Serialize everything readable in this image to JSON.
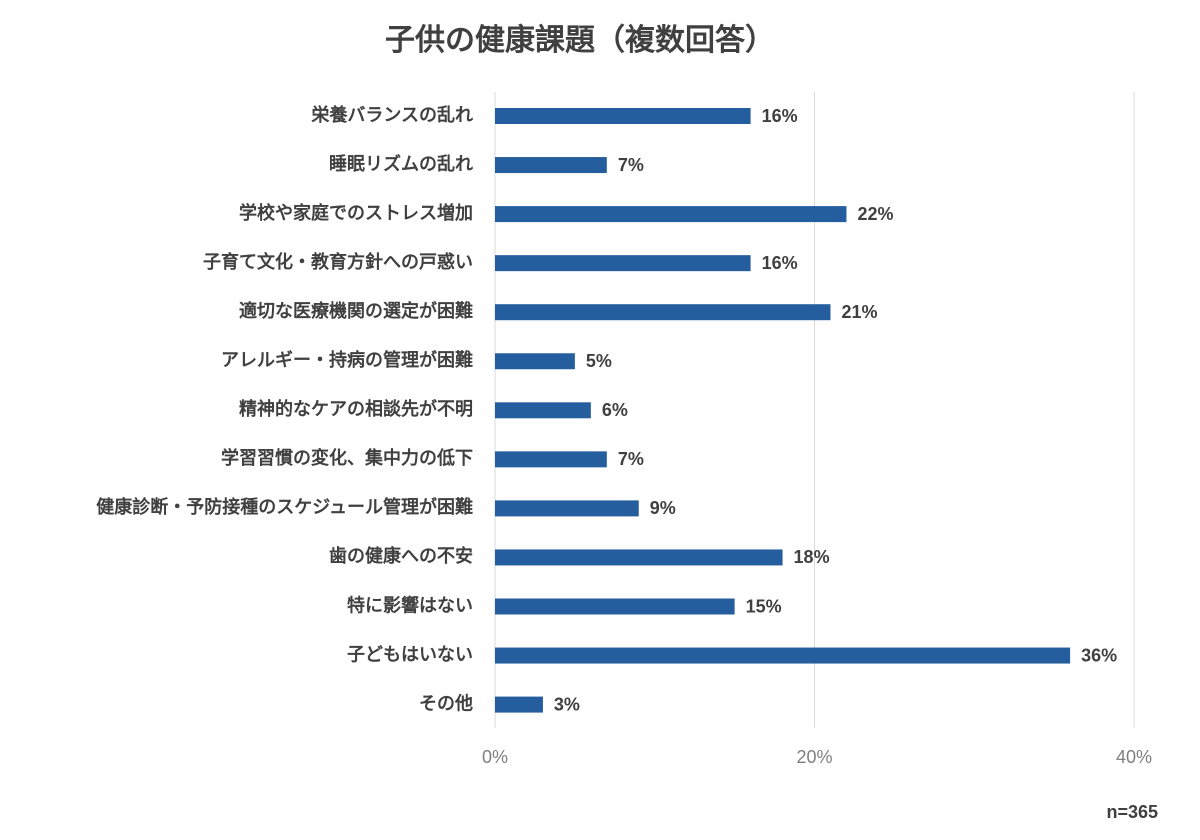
{
  "chart_data": {
    "type": "bar",
    "orientation": "horizontal",
    "title": "子供の健康課題（複数回答）",
    "categories": [
      "栄養バランスの乱れ",
      "睡眠リズムの乱れ",
      "学校や家庭でのストレス増加",
      "子育て文化・教育方針への戸惑い",
      "適切な医療機関の選定が困難",
      "アレルギー・持病の管理が困難",
      "精神的なケアの相談先が不明",
      "学習習慣の変化、集中力の低下",
      "健康診断・予防接種のスケジュール管理が困難",
      "歯の健康への不安",
      "特に影響はない",
      "子どもはいない",
      "その他"
    ],
    "values": [
      16,
      7,
      22,
      16,
      21,
      5,
      6,
      7,
      9,
      18,
      15,
      36,
      3
    ],
    "value_labels": [
      "16%",
      "7%",
      "22%",
      "16%",
      "21%",
      "5%",
      "6%",
      "7%",
      "9%",
      "18%",
      "15%",
      "36%",
      "3%"
    ],
    "color": "#255e9e",
    "xlim": [
      0,
      40
    ],
    "xticks": [
      {
        "value": 0,
        "label": "0%"
      },
      {
        "value": 20,
        "label": "20%"
      },
      {
        "value": 40,
        "label": "40%"
      }
    ],
    "grid": true,
    "note": "n=365"
  }
}
